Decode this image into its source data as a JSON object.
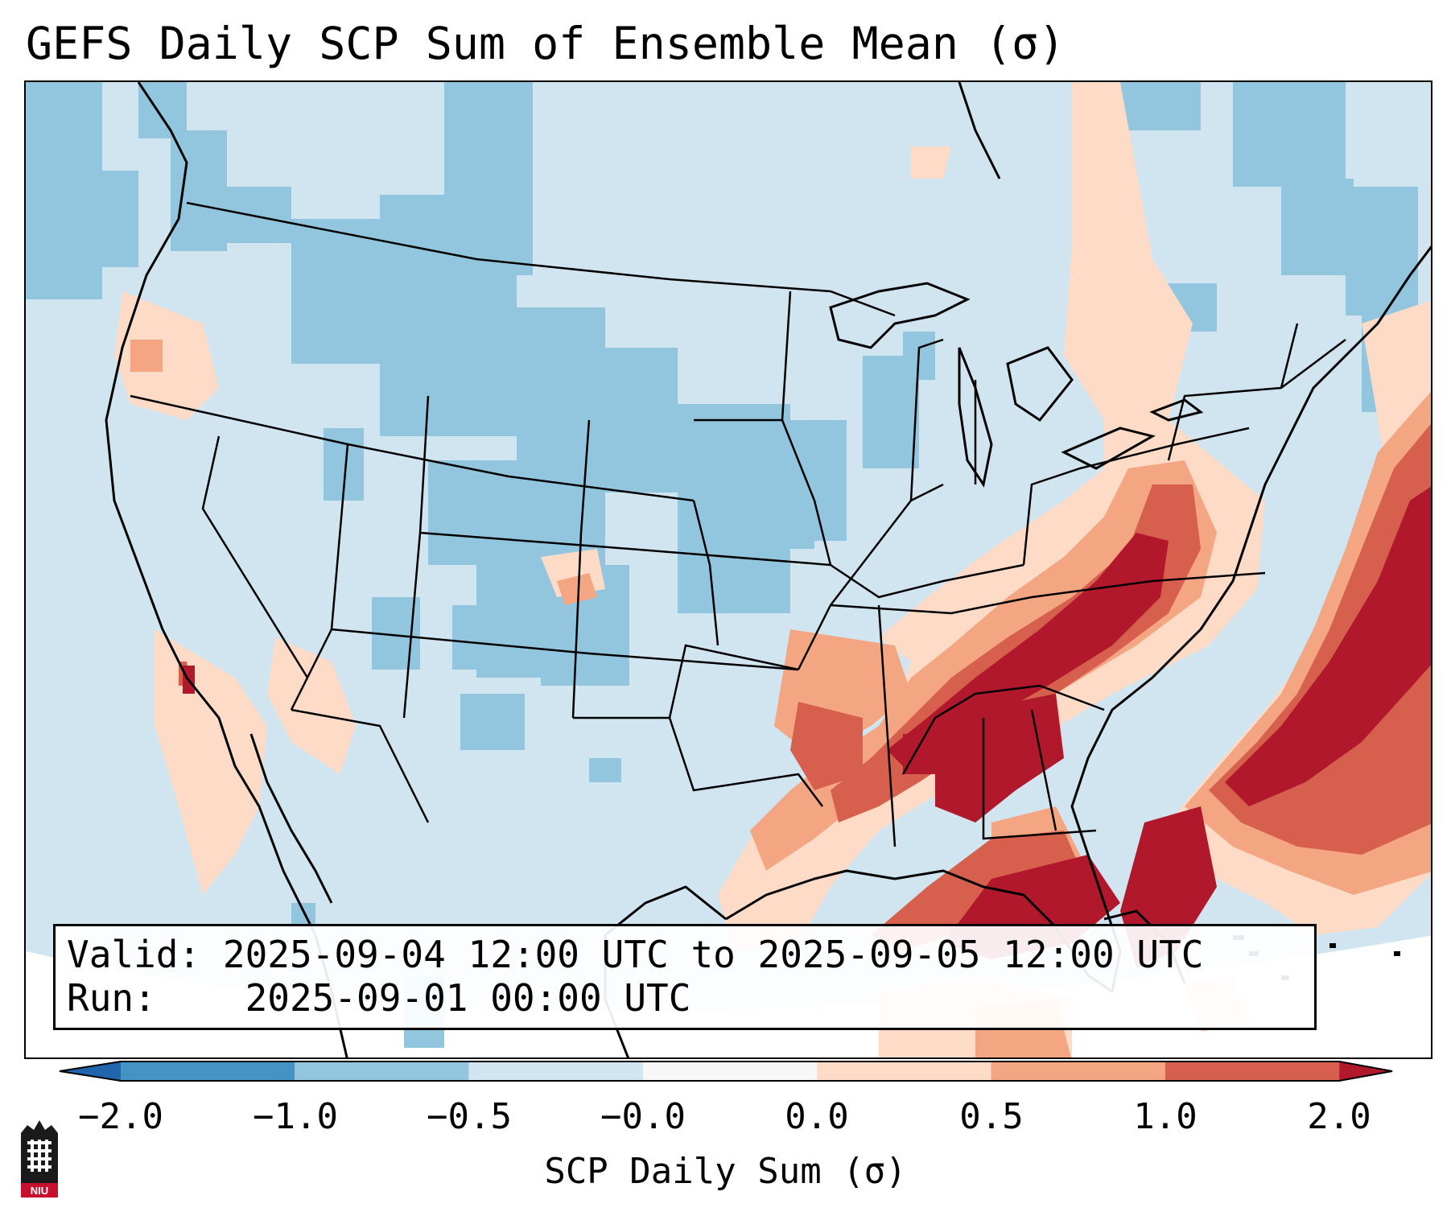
{
  "title": "GEFS Daily SCP Sum of Ensemble Mean (σ)",
  "info": {
    "valid_label": "Valid:",
    "valid_text": "2025-09-04 12:00 UTC to 2025-09-05 12:00 UTC",
    "run_label": "Run:",
    "run_text": "2025-09-01 00:00 UTC"
  },
  "colorbar": {
    "label": "SCP Daily Sum (σ)",
    "ticks": [
      "−2.0",
      "−1.0",
      "−0.5",
      "−0.0",
      "0.0",
      "0.5",
      "1.0",
      "2.0"
    ],
    "bins": [
      {
        "color": "#4393c3"
      },
      {
        "color": "#92c5de"
      },
      {
        "color": "#d1e5f0"
      },
      {
        "color": "#f7f7f7"
      },
      {
        "color": "#fddbc7"
      },
      {
        "color": "#f4a582"
      },
      {
        "color": "#d6604d"
      }
    ],
    "under_color": "#2166ac",
    "over_color": "#b2182b"
  },
  "legend_colors": {
    "strong_negative": "#92c5de",
    "weak_negative": "#d1e5f0",
    "weak_positive": "#fddbc7",
    "moderate_positive": "#f4a582",
    "strong_positive": "#d6604d",
    "extreme_positive": "#b2182b"
  },
  "logo": {
    "text": "NIU"
  }
}
